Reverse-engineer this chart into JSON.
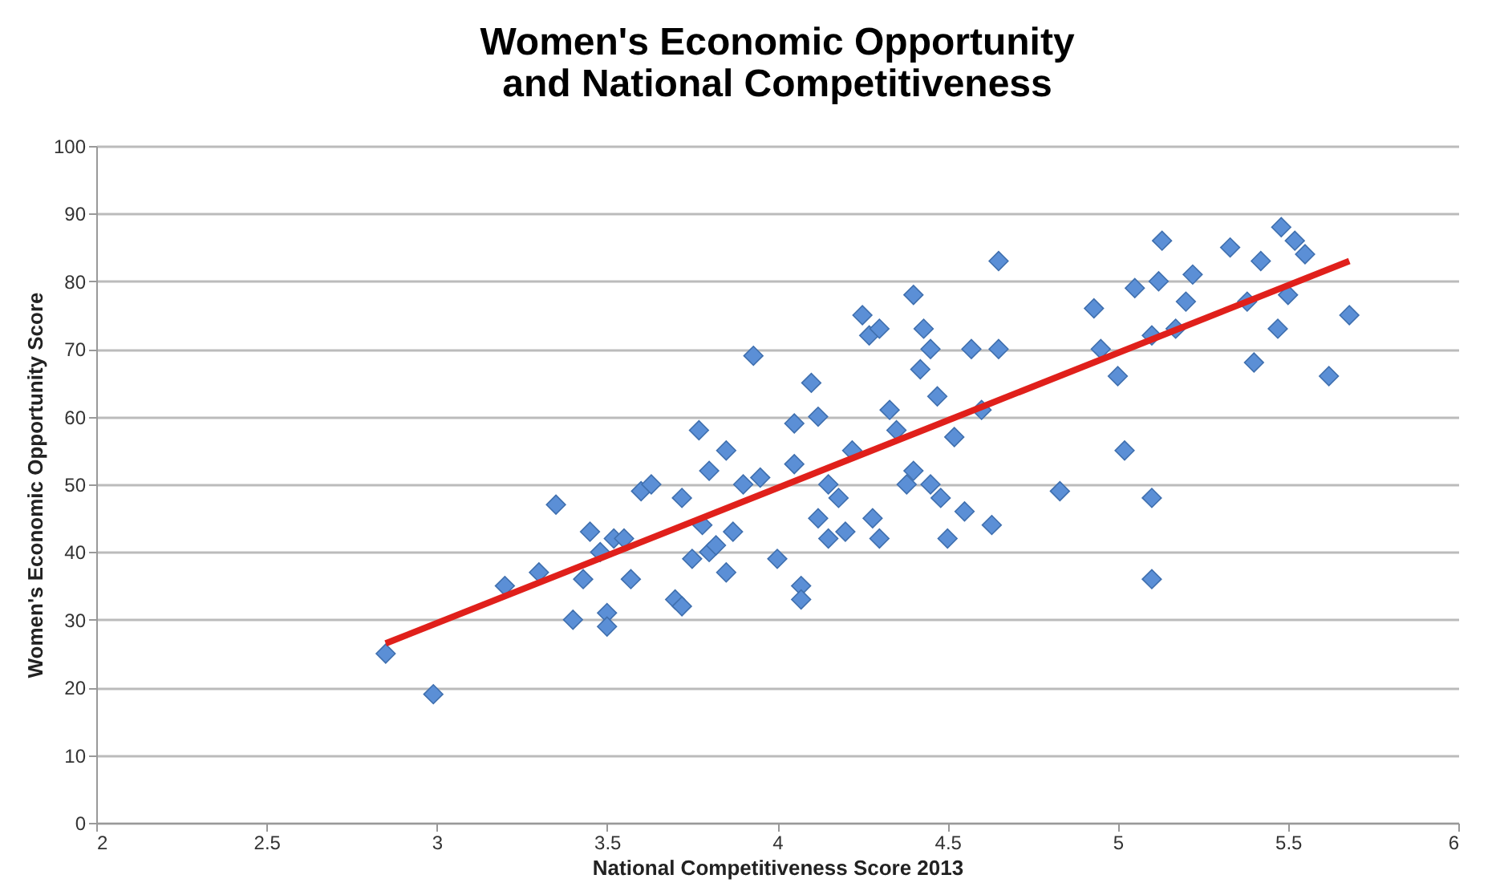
{
  "chart_data": {
    "type": "scatter",
    "title": "Women's Economic Opportunity and National Competitiveness",
    "xlabel": "National Competitiveness Score 2013",
    "ylabel": "Women's Economic Opportunity Score",
    "xlim": [
      2,
      6
    ],
    "xticks": [
      2,
      2.5,
      3,
      3.5,
      4,
      4.5,
      5,
      5.5,
      6
    ],
    "ylim": [
      0,
      100
    ],
    "yticks": [
      0,
      10,
      20,
      30,
      40,
      50,
      60,
      70,
      80,
      90,
      100
    ],
    "grid": "y",
    "series": [
      {
        "marker": "diamond",
        "color": "#5b8fd6",
        "x": [
          2.85,
          2.99,
          3.2,
          3.3,
          3.35,
          3.4,
          3.43,
          3.45,
          3.48,
          3.5,
          3.5,
          3.52,
          3.55,
          3.57,
          3.6,
          3.63,
          3.7,
          3.72,
          3.72,
          3.75,
          3.77,
          3.78,
          3.8,
          3.8,
          3.82,
          3.85,
          3.85,
          3.87,
          3.9,
          3.93,
          3.95,
          4.0,
          4.05,
          4.05,
          4.07,
          4.07,
          4.1,
          4.12,
          4.12,
          4.15,
          4.15,
          4.18,
          4.2,
          4.22,
          4.25,
          4.27,
          4.28,
          4.3,
          4.3,
          4.33,
          4.35,
          4.38,
          4.4,
          4.4,
          4.42,
          4.43,
          4.45,
          4.45,
          4.47,
          4.48,
          4.5,
          4.52,
          4.55,
          4.57,
          4.6,
          4.63,
          4.65,
          4.65,
          4.83,
          4.93,
          4.95,
          5.0,
          5.02,
          5.05,
          5.1,
          5.1,
          5.1,
          5.12,
          5.13,
          5.17,
          5.2,
          5.22,
          5.33,
          5.38,
          5.4,
          5.42,
          5.47,
          5.48,
          5.5,
          5.52,
          5.55,
          5.62,
          5.68
        ],
        "values": [
          25,
          19,
          35,
          37,
          47,
          30,
          36,
          43,
          40,
          31,
          29,
          42,
          42,
          36,
          49,
          50,
          33,
          32,
          48,
          39,
          58,
          44,
          52,
          40,
          41,
          55,
          37,
          43,
          50,
          69,
          51,
          39,
          53,
          59,
          35,
          33,
          65,
          60,
          45,
          42,
          50,
          48,
          43,
          55,
          75,
          72,
          45,
          42,
          73,
          61,
          58,
          50,
          52,
          78,
          67,
          73,
          70,
          50,
          63,
          48,
          42,
          57,
          46,
          70,
          61,
          44,
          70,
          83,
          49,
          76,
          70,
          66,
          55,
          79,
          72,
          48,
          36,
          80,
          86,
          73,
          77,
          81,
          85,
          77,
          68,
          83,
          73,
          88,
          78,
          86,
          84,
          66,
          75
        ]
      },
      {
        "type": "line",
        "marker": "none",
        "color": "#e0201b",
        "x": [
          2.85,
          5.68
        ],
        "values": [
          26.5,
          83
        ]
      }
    ]
  }
}
